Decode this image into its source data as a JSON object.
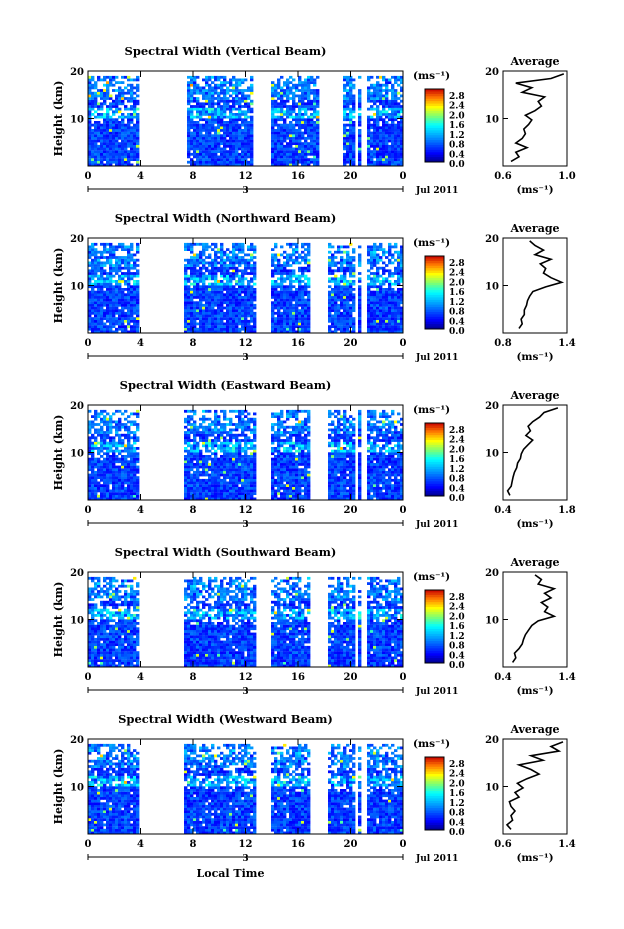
{
  "chart_data": [
    {
      "type": "heatmap",
      "title": "Spectral Width (Vertical Beam)",
      "ylabel": "Height (km)",
      "ylim": [
        0,
        20
      ],
      "y_ticks": [
        "20",
        "10"
      ],
      "xlim": [
        0,
        24
      ],
      "x_ticks": [
        "0",
        "4",
        "8",
        "12",
        "16",
        "20",
        "0"
      ],
      "date_label": "3",
      "month_label": "Jul 2011",
      "colorbar": {
        "unit": "(ms⁻¹)",
        "ticks": [
          "2.8",
          "2.4",
          "2.0",
          "1.6",
          "1.2",
          "0.8",
          "0.4",
          "0.0"
        ],
        "range": [
          0,
          3.0
        ]
      },
      "data_gaps_hours": [
        [
          4,
          7.5
        ],
        [
          12.5,
          14
        ],
        [
          17.5,
          19.5
        ],
        [
          20.3,
          20.6
        ],
        [
          20.9,
          21.2
        ]
      ],
      "profile": {
        "title": "Average",
        "xlabel": "(ms⁻¹)",
        "x_ticks": [
          "0.6",
          "1.0"
        ],
        "xlim": [
          0.6,
          1.0
        ],
        "height_km": [
          1,
          2,
          3,
          4,
          5,
          6,
          7,
          8,
          9,
          10,
          11,
          12,
          13,
          14,
          15,
          16,
          17,
          18,
          19,
          20
        ],
        "values": [
          0.65,
          0.7,
          0.68,
          0.75,
          0.68,
          0.72,
          0.74,
          0.73,
          0.76,
          0.78,
          0.74,
          0.8,
          0.84,
          0.82,
          0.86,
          0.72,
          0.78,
          0.68,
          0.9,
          0.98
        ]
      }
    },
    {
      "type": "heatmap",
      "title": "Spectral Width (Northward Beam)",
      "ylabel": "Height (km)",
      "ylim": [
        0,
        20
      ],
      "y_ticks": [
        "20",
        "10"
      ],
      "xlim": [
        0,
        24
      ],
      "x_ticks": [
        "0",
        "4",
        "8",
        "12",
        "16",
        "20",
        "0"
      ],
      "date_label": "3",
      "month_label": "Jul 2011",
      "colorbar": {
        "unit": "(ms⁻¹)",
        "ticks": [
          "2.8",
          "2.4",
          "2.0",
          "1.6",
          "1.2",
          "0.8",
          "0.4",
          "0.0"
        ],
        "range": [
          0,
          3.0
        ]
      },
      "data_gaps_hours": [
        [
          4,
          7.3
        ],
        [
          12.7,
          14
        ],
        [
          16.8,
          18.2
        ],
        [
          20.3,
          20.6
        ],
        [
          20.9,
          21.2
        ]
      ],
      "profile": {
        "title": "Average",
        "xlabel": "(ms⁻¹)",
        "x_ticks": [
          "0.8",
          "1.4"
        ],
        "xlim": [
          0.8,
          1.4
        ],
        "height_km": [
          1,
          2,
          3,
          4,
          5,
          6,
          7,
          8,
          9,
          10,
          11,
          12,
          13,
          14,
          15,
          16,
          17,
          18,
          19,
          20
        ],
        "values": [
          0.95,
          0.98,
          0.97,
          1.0,
          1.0,
          1.02,
          1.03,
          1.05,
          1.08,
          1.2,
          1.35,
          1.25,
          1.18,
          1.2,
          1.15,
          1.25,
          1.1,
          1.18,
          1.1,
          1.05
        ]
      }
    },
    {
      "type": "heatmap",
      "title": "Spectral Width (Eastward Beam)",
      "ylabel": "Height (km)",
      "ylim": [
        0,
        20
      ],
      "y_ticks": [
        "20",
        "10"
      ],
      "xlim": [
        0,
        24
      ],
      "x_ticks": [
        "0",
        "4",
        "8",
        "12",
        "16",
        "20",
        "0"
      ],
      "date_label": "3",
      "month_label": "Jul 2011",
      "colorbar": {
        "unit": "(ms⁻¹)",
        "ticks": [
          "2.8",
          "2.4",
          "2.0",
          "1.6",
          "1.2",
          "0.8",
          "0.4",
          "0.0"
        ],
        "range": [
          0,
          3.0
        ]
      },
      "data_gaps_hours": [
        [
          4,
          7.3
        ],
        [
          12.7,
          14
        ],
        [
          16.8,
          18.2
        ],
        [
          20.3,
          20.6
        ],
        [
          20.9,
          21.2
        ]
      ],
      "profile": {
        "title": "Average",
        "xlabel": "(ms⁻¹)",
        "x_ticks": [
          "0.4",
          "1.8"
        ],
        "xlim": [
          0.4,
          1.8
        ],
        "height_km": [
          1,
          2,
          3,
          4,
          5,
          6,
          7,
          8,
          9,
          10,
          11,
          12,
          13,
          14,
          15,
          16,
          17,
          18,
          19,
          20
        ],
        "values": [
          0.55,
          0.5,
          0.58,
          0.6,
          0.62,
          0.65,
          0.7,
          0.72,
          0.78,
          0.8,
          0.85,
          0.95,
          1.05,
          0.9,
          1.0,
          0.95,
          1.05,
          1.2,
          1.3,
          1.6
        ]
      }
    },
    {
      "type": "heatmap",
      "title": "Spectral Width (Southward Beam)",
      "ylabel": "Height (km)",
      "ylim": [
        0,
        20
      ],
      "y_ticks": [
        "20",
        "10"
      ],
      "xlim": [
        0,
        24
      ],
      "x_ticks": [
        "0",
        "4",
        "8",
        "12",
        "16",
        "20",
        "0"
      ],
      "date_label": "3",
      "month_label": "Jul 2011",
      "colorbar": {
        "unit": "(ms⁻¹)",
        "ticks": [
          "2.8",
          "2.4",
          "2.0",
          "1.6",
          "1.2",
          "0.8",
          "0.4",
          "0.0"
        ],
        "range": [
          0,
          3.0
        ]
      },
      "data_gaps_hours": [
        [
          4,
          7.3
        ],
        [
          12.7,
          14
        ],
        [
          16.8,
          18.2
        ],
        [
          20.3,
          20.6
        ],
        [
          20.9,
          21.2
        ]
      ],
      "profile": {
        "title": "Average",
        "xlabel": "(ms⁻¹)",
        "x_ticks": [
          "0.4",
          "1.4"
        ],
        "xlim": [
          0.4,
          1.4
        ],
        "height_km": [
          1,
          2,
          3,
          4,
          5,
          6,
          7,
          8,
          9,
          10,
          11,
          12,
          13,
          14,
          15,
          16,
          17,
          18,
          19,
          20
        ],
        "values": [
          0.55,
          0.6,
          0.58,
          0.65,
          0.7,
          0.72,
          0.75,
          0.8,
          0.85,
          0.95,
          1.2,
          1.05,
          1.1,
          1.0,
          1.15,
          1.05,
          1.2,
          0.95,
          1.0,
          0.9
        ]
      }
    },
    {
      "type": "heatmap",
      "title": "Spectral Width (Westward Beam)",
      "ylabel": "Height (km)",
      "ylim": [
        0,
        20
      ],
      "y_ticks": [
        "20",
        "10"
      ],
      "xlim": [
        0,
        24
      ],
      "x_ticks": [
        "0",
        "4",
        "8",
        "12",
        "16",
        "20",
        "0"
      ],
      "date_label": "3",
      "month_label": "Jul 2011",
      "xlabel": "Local Time",
      "colorbar": {
        "unit": "(ms⁻¹)",
        "ticks": [
          "2.8",
          "2.4",
          "2.0",
          "1.6",
          "1.2",
          "0.8",
          "0.4",
          "0.0"
        ],
        "range": [
          0,
          3.0
        ]
      },
      "data_gaps_hours": [
        [
          4,
          7.3
        ],
        [
          12.7,
          14
        ],
        [
          16.8,
          18.2
        ],
        [
          20.3,
          20.6
        ],
        [
          20.9,
          21.2
        ]
      ],
      "profile": {
        "title": "Average",
        "xlabel": "(ms⁻¹)",
        "x_ticks": [
          "0.6",
          "1.4"
        ],
        "xlim": [
          0.6,
          1.4
        ],
        "height_km": [
          1,
          2,
          3,
          4,
          5,
          6,
          7,
          8,
          9,
          10,
          11,
          12,
          13,
          14,
          15,
          16,
          17,
          18,
          19,
          20
        ],
        "values": [
          0.7,
          0.65,
          0.72,
          0.7,
          0.75,
          0.7,
          0.68,
          0.8,
          0.75,
          0.85,
          0.78,
          0.9,
          1.05,
          0.95,
          0.8,
          1.1,
          0.95,
          1.3,
          1.2,
          1.35
        ]
      }
    }
  ]
}
